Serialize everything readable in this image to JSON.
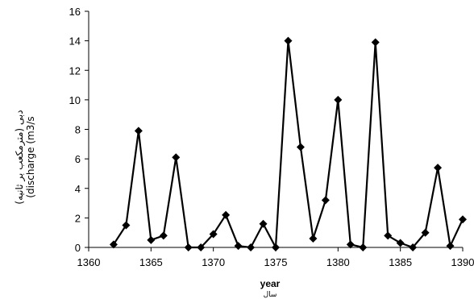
{
  "chart_data": {
    "type": "line",
    "title": "",
    "xlabel": "year",
    "xlabel_secondary": "سال",
    "ylabel_primary": "(discharge (m3/s",
    "ylabel_secondary": "دبی (مترمکعب بر ثانیه)",
    "xlim": [
      1360,
      1390
    ],
    "ylim": [
      0,
      16
    ],
    "xticks": [
      1360,
      1365,
      1370,
      1375,
      1380,
      1385,
      1390
    ],
    "yticks": [
      0,
      2,
      4,
      6,
      8,
      10,
      12,
      14,
      16
    ],
    "grid": false,
    "marker": "diamond",
    "color": "#000000",
    "series": [
      {
        "x": [
          1362,
          1363,
          1364,
          1365,
          1366,
          1367,
          1368,
          1369,
          1370,
          1371,
          1372,
          1373,
          1374,
          1375,
          1376,
          1377,
          1378,
          1379,
          1380,
          1381,
          1382,
          1383,
          1384,
          1385,
          1386,
          1387,
          1388,
          1389,
          1390
        ],
        "values": [
          0.2,
          1.5,
          7.9,
          0.5,
          0.8,
          6.1,
          0.0,
          0.0,
          0.9,
          2.2,
          0.1,
          0.0,
          1.6,
          0.0,
          14.0,
          6.8,
          0.6,
          3.2,
          10.0,
          0.2,
          0.0,
          13.9,
          0.8,
          0.3,
          0.0,
          1.0,
          5.4,
          0.1,
          1.9
        ]
      }
    ]
  }
}
